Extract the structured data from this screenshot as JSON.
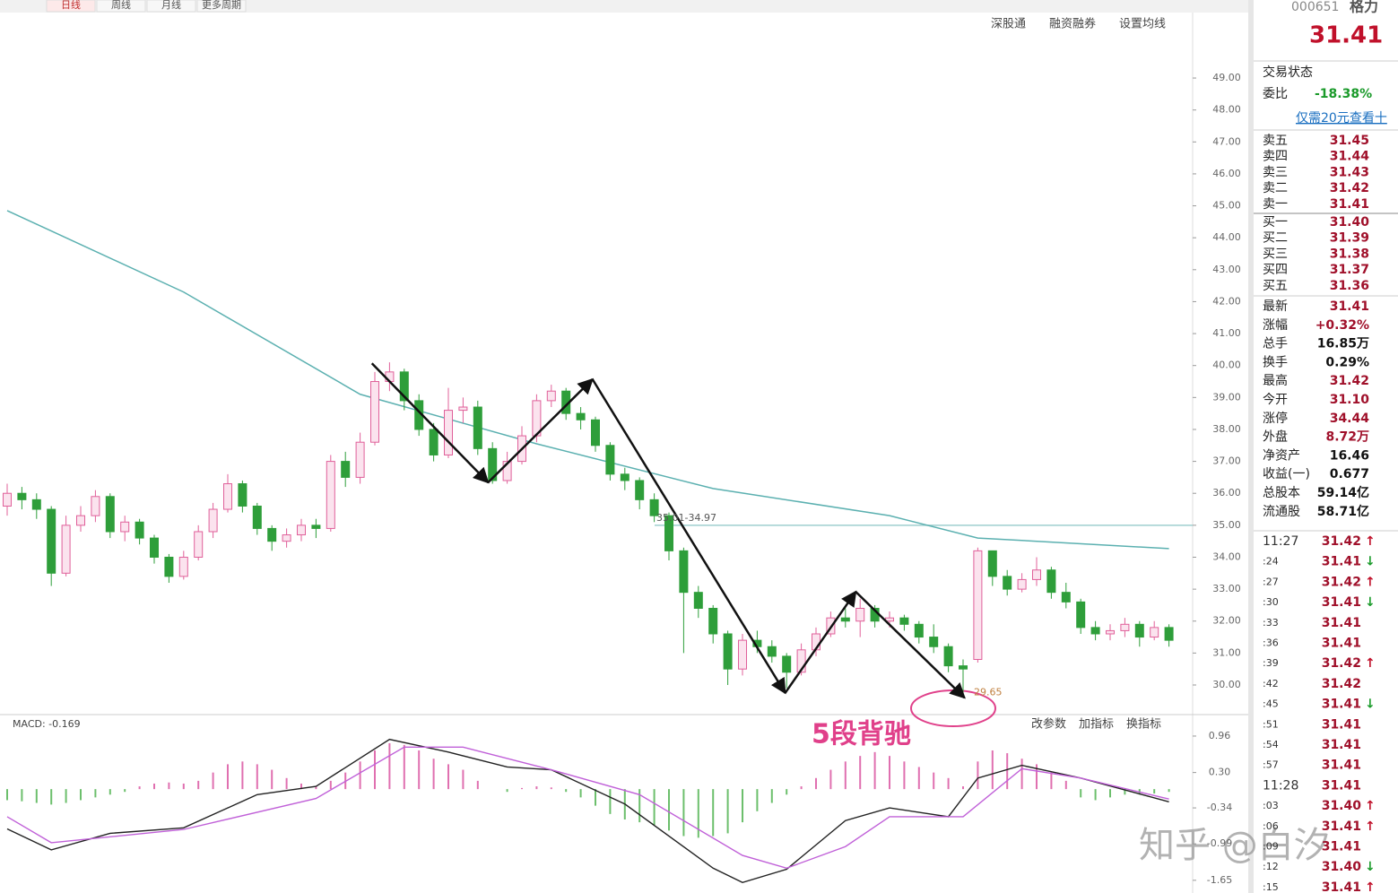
{
  "chart_data": [
    {
      "type": "candlestick",
      "open": [
        35.6,
        36.0,
        35.8,
        35.5,
        33.5,
        35.0,
        35.3,
        35.9,
        34.8,
        35.1,
        34.6,
        34.0,
        33.4,
        34.0,
        34.8,
        35.5,
        36.3,
        35.6,
        34.9,
        34.5,
        34.7,
        35.0,
        34.9,
        37.0,
        36.5,
        37.6,
        39.5,
        39.8,
        38.9,
        38.0,
        37.2,
        38.6,
        38.7,
        37.4,
        36.4,
        37.0,
        37.8,
        38.9,
        39.2,
        38.5,
        38.3,
        37.5,
        36.6,
        36.4,
        35.8,
        35.3,
        34.2,
        32.9,
        32.4,
        31.6,
        30.5,
        31.4,
        31.2,
        30.9,
        30.4,
        31.1,
        31.6,
        32.1,
        32.0,
        32.4,
        32.0,
        32.1,
        31.9,
        31.5,
        31.2,
        30.6,
        30.8,
        34.2,
        33.4,
        33.0,
        33.3,
        33.6,
        32.9,
        32.6,
        31.8,
        31.6,
        31.7,
        31.9,
        31.5,
        31.8
      ],
      "high": [
        36.3,
        36.2,
        36.0,
        35.6,
        35.3,
        35.6,
        36.1,
        36.0,
        35.3,
        35.2,
        34.7,
        34.1,
        34.2,
        35.0,
        35.7,
        36.6,
        36.4,
        35.7,
        35.0,
        34.9,
        35.2,
        35.2,
        37.2,
        37.3,
        37.9,
        39.8,
        40.1,
        39.9,
        39.1,
        38.2,
        39.3,
        39.0,
        38.9,
        37.6,
        37.3,
        38.1,
        39.1,
        39.4,
        39.3,
        38.7,
        38.4,
        37.6,
        36.8,
        36.5,
        36.0,
        35.4,
        34.3,
        33.1,
        32.5,
        31.7,
        31.6,
        31.7,
        31.4,
        31.0,
        31.3,
        31.8,
        32.3,
        32.4,
        32.7,
        32.5,
        32.3,
        32.2,
        32.0,
        31.9,
        31.3,
        30.8,
        34.3,
        34.2,
        33.6,
        33.5,
        34.0,
        33.7,
        33.2,
        32.7,
        32.0,
        31.9,
        32.1,
        32.0,
        32.0,
        31.9
      ],
      "low": [
        35.3,
        35.5,
        35.2,
        33.1,
        33.4,
        34.8,
        35.1,
        34.6,
        34.5,
        34.4,
        33.8,
        33.2,
        33.3,
        33.9,
        34.6,
        35.4,
        35.4,
        34.7,
        34.2,
        34.3,
        34.5,
        34.6,
        34.8,
        36.2,
        36.3,
        37.5,
        39.2,
        38.6,
        37.8,
        37.0,
        37.1,
        38.2,
        37.2,
        36.3,
        36.3,
        36.9,
        37.6,
        38.7,
        38.3,
        38.0,
        37.3,
        36.4,
        36.1,
        35.5,
        35.1,
        33.9,
        31.0,
        32.1,
        31.3,
        30.0,
        30.3,
        31.0,
        30.7,
        29.9,
        30.3,
        30.9,
        31.5,
        31.8,
        31.5,
        31.8,
        31.8,
        31.7,
        31.3,
        31.0,
        30.4,
        29.65,
        30.7,
        33.1,
        32.8,
        32.9,
        33.1,
        32.7,
        32.4,
        31.6,
        31.4,
        31.4,
        31.5,
        31.2,
        31.4,
        31.2
      ],
      "close": [
        36.0,
        35.8,
        35.5,
        33.5,
        35.0,
        35.3,
        35.9,
        34.8,
        35.1,
        34.6,
        34.0,
        33.4,
        34.0,
        34.8,
        35.5,
        36.3,
        35.6,
        34.9,
        34.5,
        34.7,
        35.0,
        34.9,
        37.0,
        36.5,
        37.6,
        39.5,
        39.8,
        38.9,
        38.0,
        37.2,
        38.6,
        38.7,
        37.4,
        36.4,
        37.0,
        37.8,
        38.9,
        39.2,
        38.5,
        38.3,
        37.5,
        36.6,
        36.4,
        35.8,
        35.3,
        34.2,
        32.9,
        32.4,
        31.6,
        30.5,
        31.4,
        31.2,
        30.9,
        30.4,
        31.1,
        31.6,
        32.1,
        32.0,
        32.4,
        32.0,
        32.1,
        31.9,
        31.5,
        31.2,
        30.6,
        30.5,
        34.2,
        33.4,
        33.0,
        33.3,
        33.6,
        32.9,
        32.6,
        31.8,
        31.6,
        31.7,
        31.9,
        31.5,
        31.8,
        31.4
      ],
      "up_color": "#e0609a",
      "down_color": "#2e9e3a",
      "overlays": [
        {
          "color": "#5bb0b0",
          "x": [
            0,
            12,
            24,
            36,
            48,
            60,
            66,
            79
          ],
          "values": [
            44.85,
            42.3,
            39.1,
            37.55,
            36.15,
            35.3,
            34.6,
            34.27
          ]
        }
      ],
      "hline": 35,
      "hline_color": "#9fcfcf",
      "zigzag": {
        "color": "#111",
        "x": [
          24.8,
          32.7,
          39.8,
          52.9,
          57.7,
          65.1
        ],
        "values": [
          40.07,
          36.34,
          39.57,
          29.75,
          32.92,
          29.6
        ]
      },
      "annotations": [
        "35.01-34.97",
        "29.65",
        "5段背驰"
      ],
      "ylim": [
        29.13,
        50.32
      ],
      "yticks": [
        {
          "value": 30,
          "label": "30.00"
        },
        {
          "value": 31,
          "label": "31.00"
        },
        {
          "value": 32,
          "label": "32.00"
        },
        {
          "value": 33,
          "label": "33.00"
        },
        {
          "value": 34,
          "label": "34.00"
        },
        {
          "value": 35,
          "label": "35.00"
        },
        {
          "value": 36,
          "label": "36.00"
        },
        {
          "value": 37,
          "label": "37.00"
        },
        {
          "value": 38,
          "label": "38.00"
        },
        {
          "value": 39,
          "label": "39.00"
        },
        {
          "value": 40,
          "label": "40.00"
        },
        {
          "value": 41,
          "label": "41.00"
        },
        {
          "value": 42,
          "label": "42.00"
        },
        {
          "value": 43,
          "label": "43.00"
        },
        {
          "value": 44,
          "label": "44.00"
        },
        {
          "value": 45,
          "label": "45.00"
        },
        {
          "value": 46,
          "label": "46.00"
        },
        {
          "value": 47,
          "label": "47.00"
        },
        {
          "value": 48,
          "label": "48.00"
        },
        {
          "value": 49,
          "label": "49.00"
        }
      ]
    },
    {
      "type": "macd",
      "title": "MACD: -0.169",
      "histogram": [
        -0.2,
        -0.22,
        -0.25,
        -0.28,
        -0.25,
        -0.2,
        -0.15,
        -0.1,
        -0.05,
        0.05,
        0.1,
        0.12,
        0.1,
        0.15,
        0.3,
        0.45,
        0.5,
        0.45,
        0.35,
        0.2,
        0.1,
        0.05,
        0.15,
        0.3,
        0.5,
        0.7,
        0.83,
        0.8,
        0.7,
        0.55,
        0.45,
        0.35,
        0.15,
        0.0,
        -0.05,
        0.02,
        0.05,
        0.03,
        -0.05,
        -0.15,
        -0.3,
        -0.45,
        -0.55,
        -0.6,
        -0.65,
        -0.75,
        -0.85,
        -0.88,
        -0.85,
        -0.8,
        -0.6,
        -0.4,
        -0.25,
        -0.1,
        0.05,
        0.2,
        0.35,
        0.5,
        0.6,
        0.67,
        0.6,
        0.5,
        0.4,
        0.3,
        0.2,
        0.05,
        0.5,
        0.7,
        0.65,
        0.55,
        0.45,
        0.3,
        0.15,
        -0.15,
        -0.2,
        -0.15,
        -0.1,
        -0.1,
        -0.08,
        -0.05
      ],
      "up_color": "#e070b0",
      "down_color": "#6cbf6c",
      "lines": [
        {
          "color": "#222",
          "x": [
            0,
            3,
            7,
            12,
            17,
            21,
            26,
            30,
            34,
            37,
            42,
            48,
            50,
            53,
            57,
            60,
            64,
            66,
            69,
            73,
            79
          ],
          "values": [
            -0.72,
            -1.1,
            -0.8,
            -0.7,
            -0.1,
            0.05,
            0.9,
            0.67,
            0.4,
            0.35,
            -0.27,
            -1.43,
            -1.69,
            -1.45,
            -0.57,
            -0.34,
            -0.5,
            0.2,
            0.43,
            0.2,
            -0.23
          ]
        },
        {
          "color": "#c060d8",
          "x": [
            0,
            3,
            12,
            21,
            27,
            31,
            37,
            43,
            50,
            53,
            57,
            60,
            65,
            69,
            73,
            79
          ],
          "values": [
            -0.5,
            -0.97,
            -0.73,
            -0.17,
            0.76,
            0.76,
            0.35,
            -0.1,
            -1.2,
            -1.43,
            -1.04,
            -0.5,
            -0.5,
            0.37,
            0.2,
            -0.18
          ]
        }
      ],
      "buttons": [
        "改参数",
        "加指标",
        "换指标"
      ],
      "ylim": [
        -1.88,
        1.3
      ],
      "yticks": [
        0.96,
        {
          "value": 0.3,
          "label": "0.30"
        },
        -0.34,
        -0.99,
        -1.65
      ]
    }
  ],
  "toolbar": {
    "tabs": [
      "日线",
      "周线",
      "月线",
      "更多周期"
    ],
    "tools": [
      "深股通",
      "融资融券",
      "设置均线"
    ]
  },
  "quote": {
    "code": "000651",
    "name": "格力",
    "price": "31.41",
    "status": "交易状态",
    "weibi_label": "委比",
    "weibi": "-18.38%",
    "promo": "仅需20元查看十",
    "asks": [
      {
        "label": "卖五",
        "price": "31.45"
      },
      {
        "label": "卖四",
        "price": "31.44"
      },
      {
        "label": "卖三",
        "price": "31.43"
      },
      {
        "label": "卖二",
        "price": "31.42"
      },
      {
        "label": "卖一",
        "price": "31.41"
      }
    ],
    "bids": [
      {
        "label": "买一",
        "price": "31.40"
      },
      {
        "label": "买二",
        "price": "31.39"
      },
      {
        "label": "买三",
        "price": "31.38"
      },
      {
        "label": "买四",
        "price": "31.37"
      },
      {
        "label": "买五",
        "price": "31.36"
      }
    ],
    "stats": [
      {
        "label": "最新",
        "value": "31.41"
      },
      {
        "label": "涨幅",
        "value": "+0.32%"
      },
      {
        "label": "总手",
        "value": "16.85万"
      },
      {
        "label": "换手",
        "value": "0.29%"
      },
      {
        "label": "最高",
        "value": "31.42"
      },
      {
        "label": "今开",
        "value": "31.10"
      },
      {
        "label": "涨停",
        "value": "34.44"
      },
      {
        "label": "外盘",
        "value": "8.72万"
      },
      {
        "label": "净资产",
        "value": "16.46"
      },
      {
        "label": "收益(一)",
        "value": "0.677"
      },
      {
        "label": "总股本",
        "value": "59.14亿"
      },
      {
        "label": "流通股",
        "value": "58.71亿"
      }
    ],
    "ticks": [
      {
        "time": "11:27",
        "price": "31.42",
        "dir": "↑"
      },
      {
        "time": ":24",
        "price": "31.41",
        "dir": "↓"
      },
      {
        "time": ":27",
        "price": "31.42",
        "dir": "↑"
      },
      {
        "time": ":30",
        "price": "31.41",
        "dir": "↓"
      },
      {
        "time": ":33",
        "price": "31.41"
      },
      {
        "time": ":36",
        "price": "31.41"
      },
      {
        "time": ":39",
        "price": "31.42",
        "dir": "↑"
      },
      {
        "time": ":42",
        "price": "31.42"
      },
      {
        "time": ":45",
        "price": "31.41",
        "dir": "↓"
      },
      {
        "time": ":51",
        "price": "31.41"
      },
      {
        "time": ":54",
        "price": "31.41"
      },
      {
        "time": ":57",
        "price": "31.41"
      },
      {
        "time": "11:28",
        "price": "31.41"
      },
      {
        "time": ":03",
        "price": "31.40",
        "dir": "↑"
      },
      {
        "time": ":06",
        "price": "31.41",
        "dir": "↑"
      },
      {
        "time": ":09",
        "price": "31.41"
      },
      {
        "time": ":12",
        "price": "31.40",
        "dir": "↓"
      },
      {
        "time": ":15",
        "price": "31.41",
        "dir": "↑"
      }
    ]
  },
  "watermark": "知乎 @白汐"
}
